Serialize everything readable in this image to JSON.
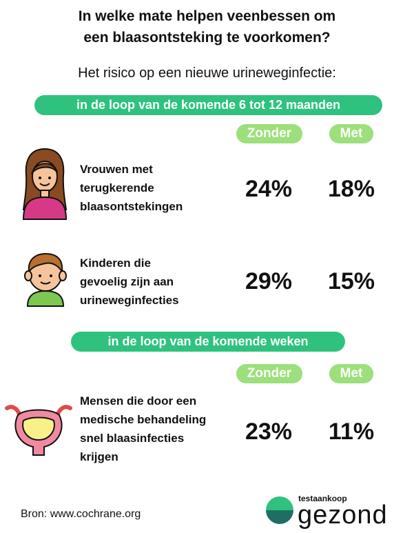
{
  "title": {
    "line1": "In welke mate helpen veenbessen om",
    "line2": "een blaasontsteking te voorkomen?"
  },
  "subtitle": "Het risico op een nieuwe urineweginfectie:",
  "sections": [
    {
      "period": "in de loop van de komende 6 tot 12 maanden",
      "col_without": "Zonder",
      "col_with": "Met",
      "rows": [
        {
          "icon": "woman-icon",
          "lines": [
            "Vrouwen met",
            "terugkerende",
            "blaasontstekingen"
          ],
          "without": "24%",
          "with": "18%"
        },
        {
          "icon": "child-icon",
          "lines": [
            "Kinderen die",
            "gevoelig zijn aan",
            "urineweginfecties"
          ],
          "without": "29%",
          "with": "15%"
        }
      ]
    },
    {
      "period": "in de loop van de komende weken",
      "col_without": "Zonder",
      "col_with": "Met",
      "rows": [
        {
          "icon": "bladder-icon",
          "lines": [
            "Mensen die door een",
            "medische behandeling",
            "snel blaasinfecties",
            "krijgen"
          ],
          "without": "23%",
          "with": "11%"
        }
      ]
    }
  ],
  "source": "Bron: www.cochrane.org",
  "logo": {
    "small": "testaankoop",
    "big": "gezond"
  },
  "colors": {
    "green": "#2ec27e",
    "light_green": "#9be07a"
  }
}
